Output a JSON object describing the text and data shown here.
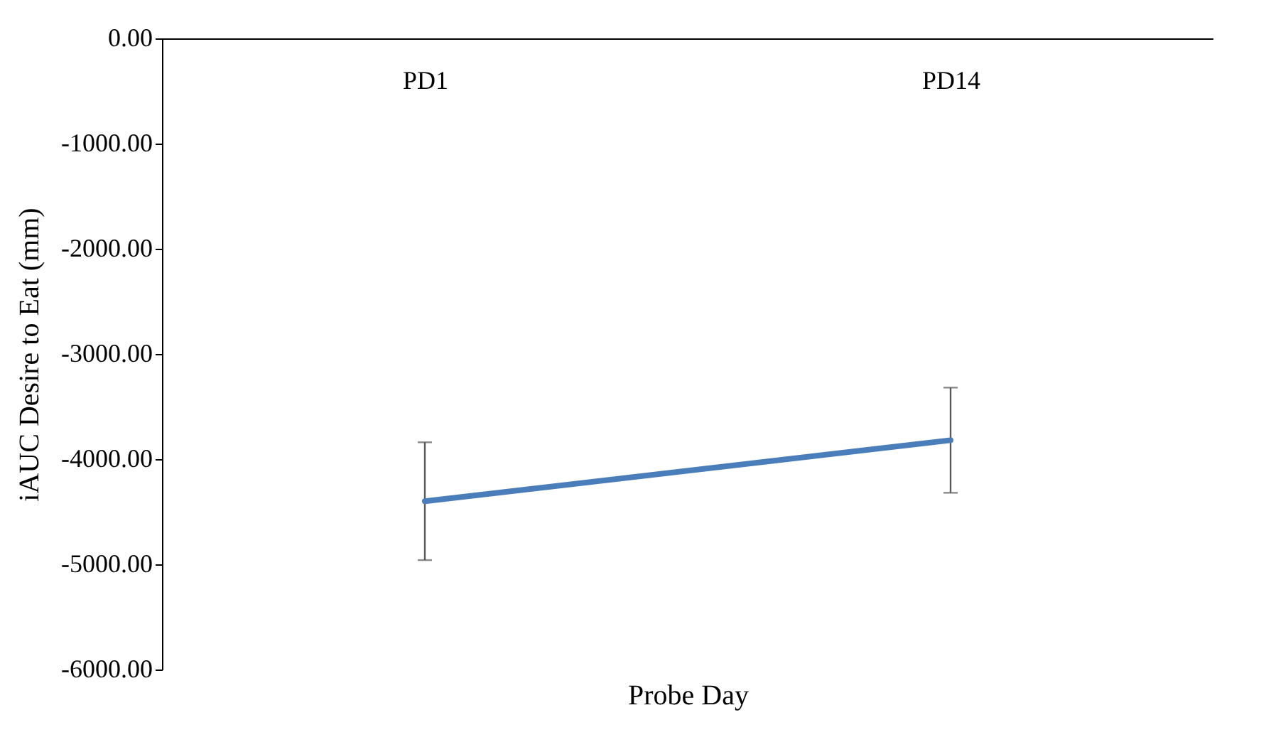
{
  "chart_data": {
    "type": "line",
    "xlabel": "Probe Day",
    "ylabel": "iAUC Desire to Eat (mm)",
    "categories": [
      "PD1",
      "PD14"
    ],
    "series": [
      {
        "color": "#4a7ebb",
        "values": [
          -4400,
          -3820
        ],
        "errors": [
          560,
          500
        ]
      }
    ],
    "ylim": [
      -6000,
      0
    ],
    "yticks": [
      {
        "value": -6000,
        "label": "-6000.00"
      },
      {
        "value": -5000,
        "label": "-5000.00"
      },
      {
        "value": -4000,
        "label": "-4000.00"
      },
      {
        "value": -3000,
        "label": "-3000.00"
      },
      {
        "value": -2000,
        "label": "-2000.00"
      },
      {
        "value": -1000,
        "label": "-1000.00"
      },
      {
        "value": 0,
        "label": "0.00"
      }
    ],
    "grid": false,
    "marker": "none",
    "line_style": "solid"
  }
}
